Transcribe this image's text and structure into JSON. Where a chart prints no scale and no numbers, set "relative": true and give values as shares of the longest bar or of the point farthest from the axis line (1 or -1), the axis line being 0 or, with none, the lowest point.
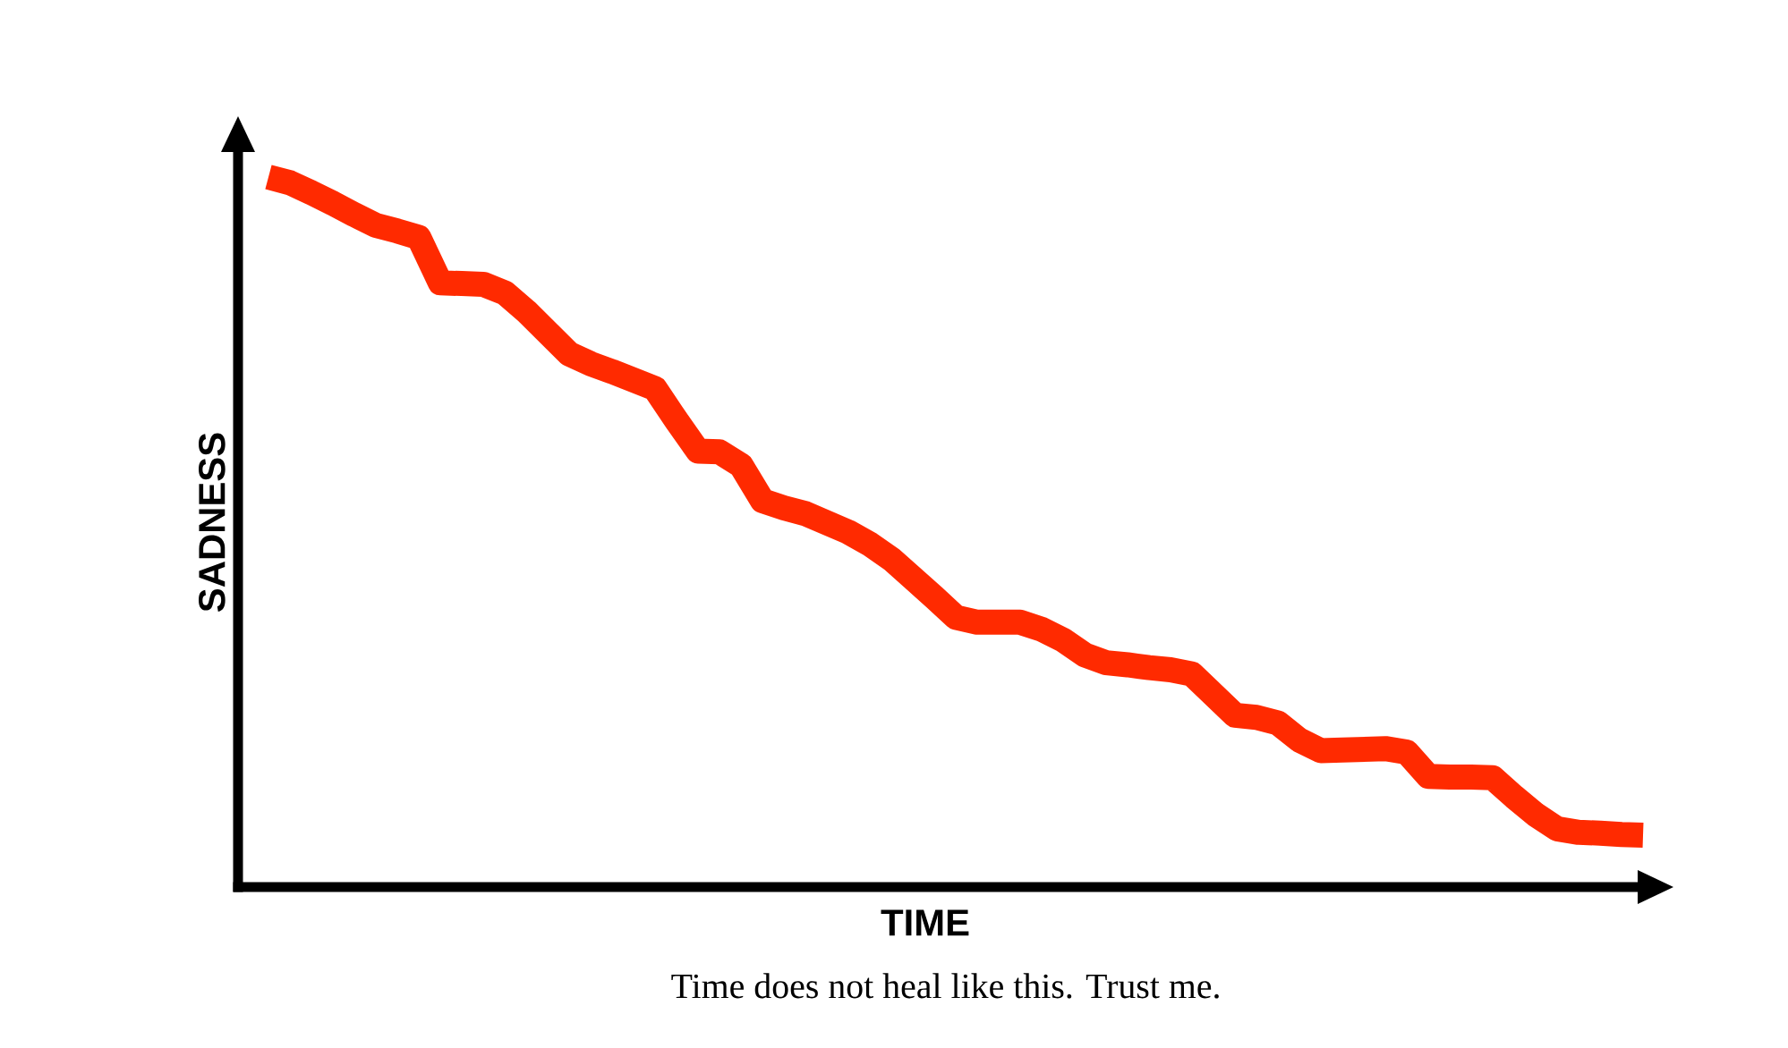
{
  "chart_data": {
    "type": "line",
    "xlabel": "TIME",
    "ylabel": "SADNESS",
    "annotations": [
      "Time does not heal like this. Trust me."
    ],
    "relative": true,
    "categories": [
      null,
      null,
      null,
      null,
      null,
      null,
      null,
      null,
      null,
      null,
      null,
      null,
      null,
      null,
      null,
      null,
      null,
      null,
      null,
      null,
      null,
      null,
      null,
      null,
      null,
      null,
      null,
      null,
      null,
      null,
      null,
      null,
      null,
      null,
      null,
      null,
      null,
      null,
      null,
      null,
      null,
      null,
      null,
      null,
      null,
      null,
      null,
      null,
      null,
      null,
      null,
      null,
      null,
      null,
      null,
      null,
      null,
      null,
      null,
      null,
      null,
      null,
      null,
      null,
      null
    ],
    "series": [
      {
        "color": "#ff2a00",
        "values": [
          1.0,
          0.992,
          0.978,
          0.963,
          0.947,
          0.932,
          0.924,
          0.915,
          0.851,
          0.85,
          0.849,
          0.837,
          0.811,
          0.781,
          0.751,
          0.737,
          0.726,
          0.714,
          0.702,
          0.657,
          0.614,
          0.613,
          0.594,
          0.544,
          0.534,
          0.526,
          0.513,
          0.5,
          0.483,
          0.462,
          0.435,
          0.408,
          0.38,
          0.373,
          0.373,
          0.373,
          0.363,
          0.348,
          0.327,
          0.316,
          0.313,
          0.309,
          0.306,
          0.3,
          0.271,
          0.242,
          0.239,
          0.231,
          0.207,
          0.192,
          0.193,
          0.194,
          0.195,
          0.19,
          0.156,
          0.155,
          0.155,
          0.154,
          0.127,
          0.102,
          0.082,
          0.077,
          0.076,
          0.074,
          0.073
        ]
      }
    ]
  }
}
